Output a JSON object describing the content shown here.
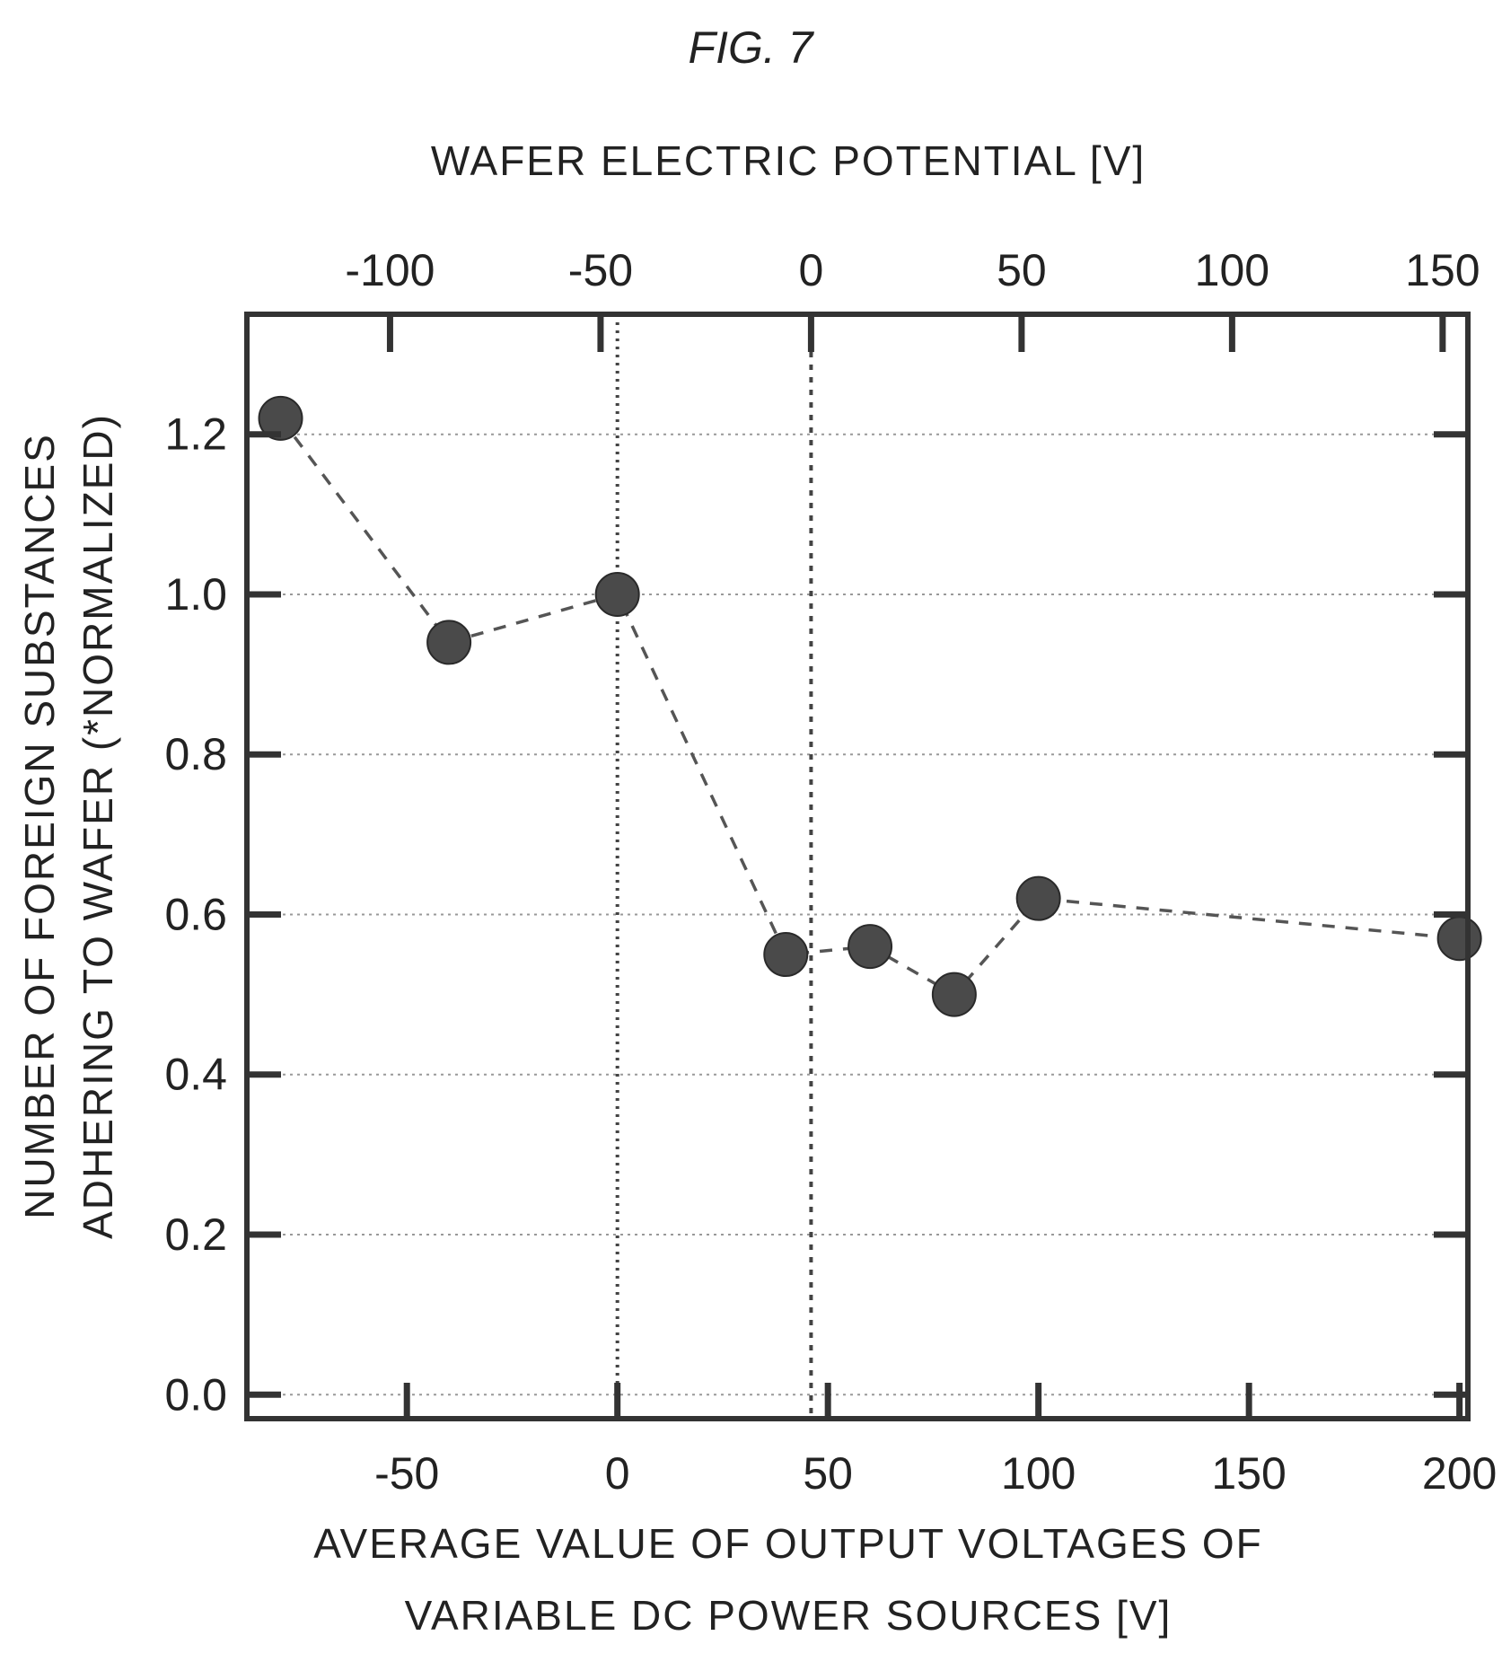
{
  "chart_data": {
    "type": "scatter",
    "figure_label": "FIG. 7",
    "title": "FIG. 7",
    "xlabel_lines": [
      "AVERAGE VALUE OF OUTPUT VOLTAGES OF",
      "VARIABLE DC POWER SOURCES [V]"
    ],
    "x2label": "WAFER ELECTRIC POTENTIAL [V]",
    "ylabel_lines": [
      "NUMBER OF FOREIGN SUBSTANCES",
      "ADHERING TO WAFER (*NORMALIZED)"
    ],
    "xlim": [
      -88,
      202
    ],
    "x_ticks": [
      -50,
      0,
      50,
      100,
      150,
      200
    ],
    "x_tick_labels": [
      "-50",
      "0",
      "50",
      "100",
      "150",
      "200"
    ],
    "x2_ticks": [
      -100,
      -50,
      0,
      50,
      100,
      150
    ],
    "x2_tick_labels": [
      "-100",
      "-50",
      "0",
      "50",
      "100",
      "150"
    ],
    "x2_zero_at_x": 46,
    "ylim": [
      -0.03,
      1.35
    ],
    "y_ticks": [
      0.0,
      0.2,
      0.4,
      0.6,
      0.8,
      1.0,
      1.2
    ],
    "y_tick_labels": [
      "0.0",
      "0.2",
      "0.4",
      "0.6",
      "0.8",
      "1.0",
      "1.2"
    ],
    "grid": true,
    "series": [
      {
        "x": [
          -80,
          -40,
          0,
          40,
          60,
          80,
          100,
          200
        ],
        "y": [
          1.22,
          0.94,
          1.0,
          0.55,
          0.56,
          0.5,
          0.62,
          0.57
        ],
        "line_style": "dashed",
        "marker": "filled-circle",
        "color": "#4a4a4a"
      }
    ],
    "reference_lines": [
      {
        "axis": "x",
        "value": 0,
        "style": "dotted"
      },
      {
        "axis": "x",
        "value": 46,
        "style": "dashed"
      }
    ]
  }
}
